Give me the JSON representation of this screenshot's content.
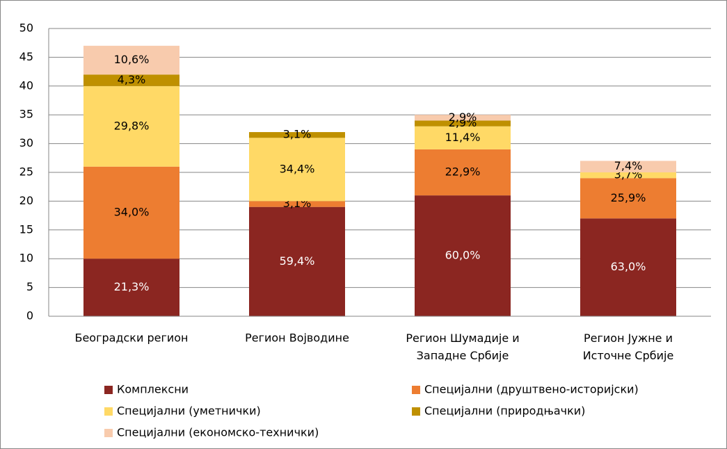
{
  "chart_data": {
    "type": "stacked_bar",
    "categories": [
      "Београдски регион",
      "Регион Војводине",
      "Регион Шумадије и Западне Србије",
      "Регион Јужне и Источне Србије"
    ],
    "series": [
      {
        "name": "Комплексни",
        "color": "#8b2621",
        "values": [
          10,
          19,
          21,
          17
        ],
        "value_labels": [
          "21,3%",
          "59,4%",
          "60,0%",
          "63,0%"
        ]
      },
      {
        "name": "Специјални (друштвено-историјски)",
        "color": "#ed7d31",
        "values": [
          16,
          1,
          8,
          7
        ],
        "value_labels": [
          "34,0%",
          "3,1%",
          "22,9%",
          "25,9%"
        ]
      },
      {
        "name": "Специјални (уметнички)",
        "color": "#ffd966",
        "values": [
          14,
          11,
          4,
          1
        ],
        "value_labels": [
          "29,8%",
          "34,4%",
          "11,4%",
          "3,7%"
        ]
      },
      {
        "name": "Специјални (природњачки)",
        "color": "#bf9000",
        "values": [
          2,
          1,
          1,
          0
        ],
        "value_labels": [
          "4,3%",
          "3,1%",
          "2,9%",
          null
        ]
      },
      {
        "name": "Специјални (економско-технички)",
        "color": "#f8cbad",
        "values": [
          5,
          0,
          1,
          2
        ],
        "value_labels": [
          "10,6%",
          null,
          "2,9%",
          "7,4%"
        ]
      }
    ],
    "ylim": [
      0,
      50
    ],
    "yticks": [
      0,
      5,
      10,
      15,
      20,
      25,
      30,
      35,
      40,
      45,
      50
    ],
    "grid": true,
    "legend": "bottom"
  }
}
